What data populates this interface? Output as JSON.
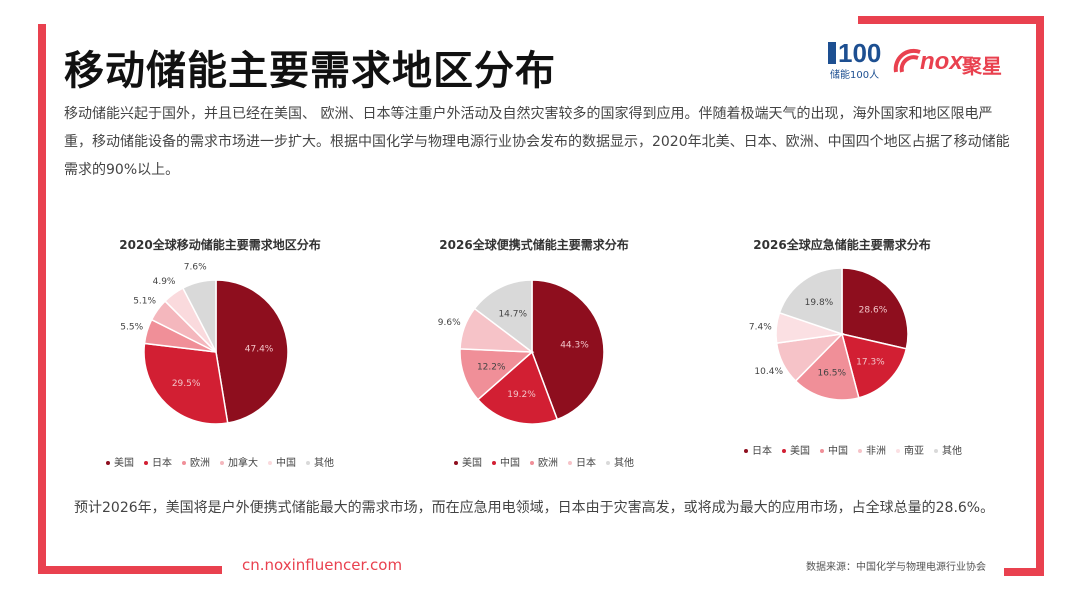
{
  "title": "移动储能主要需求地区分布",
  "logo": {
    "brand_a": "100",
    "brand_a_sub": "储能100人",
    "brand_b": "nox",
    "brand_b_cn": "聚星"
  },
  "intro_text": "移动储能兴起于国外，并且已经在美国、 欧洲、日本等注重户外活动及自然灾害较多的国家得到应用。伴随着极端天气的出现，海外国家和地区限电严重，移动储能设备的需求市场进一步扩大。根据中国化学与物理电源行业协会发布的数据显示，2020年北美、日本、欧洲、中国四个地区占据了移动储能需求的90%以上。",
  "chart_data": [
    {
      "type": "pie",
      "title": "2020全球移动储能主要需求地区分布",
      "categories": [
        "美国",
        "日本",
        "欧洲",
        "加拿大",
        "中国",
        "其他"
      ],
      "values": [
        47.4,
        29.5,
        5.5,
        5.1,
        4.9,
        7.6
      ],
      "labels": [
        "47.4%",
        "29.5%",
        "5.5%",
        "5.1%",
        "4.9%",
        "7.6%"
      ],
      "colors": [
        "#8e0e1e",
        "#d21f33",
        "#f08f98",
        "#f4b7bd",
        "#fadadd",
        "#d9d9d9"
      ],
      "legend": "bottom"
    },
    {
      "type": "pie",
      "title": "2026全球便携式储能主要需求分布",
      "categories": [
        "美国",
        "中国",
        "欧洲",
        "日本",
        "其他"
      ],
      "values": [
        44.3,
        19.2,
        12.2,
        9.6,
        14.7
      ],
      "labels": [
        "44.3%",
        "19.2%",
        "12.2%",
        "9.6%",
        "14.7%"
      ],
      "colors": [
        "#8e0e1e",
        "#d21f33",
        "#f08f98",
        "#f6c3c8",
        "#d9d9d9"
      ],
      "legend": "bottom"
    },
    {
      "type": "pie",
      "title": "2026全球应急储能主要需求分布",
      "categories": [
        "日本",
        "美国",
        "中国",
        "非洲",
        "南亚",
        "其他"
      ],
      "values": [
        28.6,
        17.3,
        16.5,
        10.4,
        7.4,
        19.8
      ],
      "labels": [
        "28.6%",
        "17.3%",
        "16.5%",
        "10.4%",
        "7.4%",
        "19.8%"
      ],
      "colors": [
        "#8e0e1e",
        "#d21f33",
        "#f08f98",
        "#f6c3c8",
        "#fbe0e3",
        "#d9d9d9"
      ],
      "legend": "bottom"
    }
  ],
  "conclusion_text": "预计2026年，美国将是户外便携式储能最大的需求市场，而在应急用电领域，日本由于灾害高发，或将成为最大的应用市场，占全球总量的28.6%。",
  "footer": {
    "url": "cn.noxinfluencer.com",
    "source": "数据来源：中国化学与物理电源行业协会"
  },
  "colors": {
    "accent": "#e9414f"
  }
}
